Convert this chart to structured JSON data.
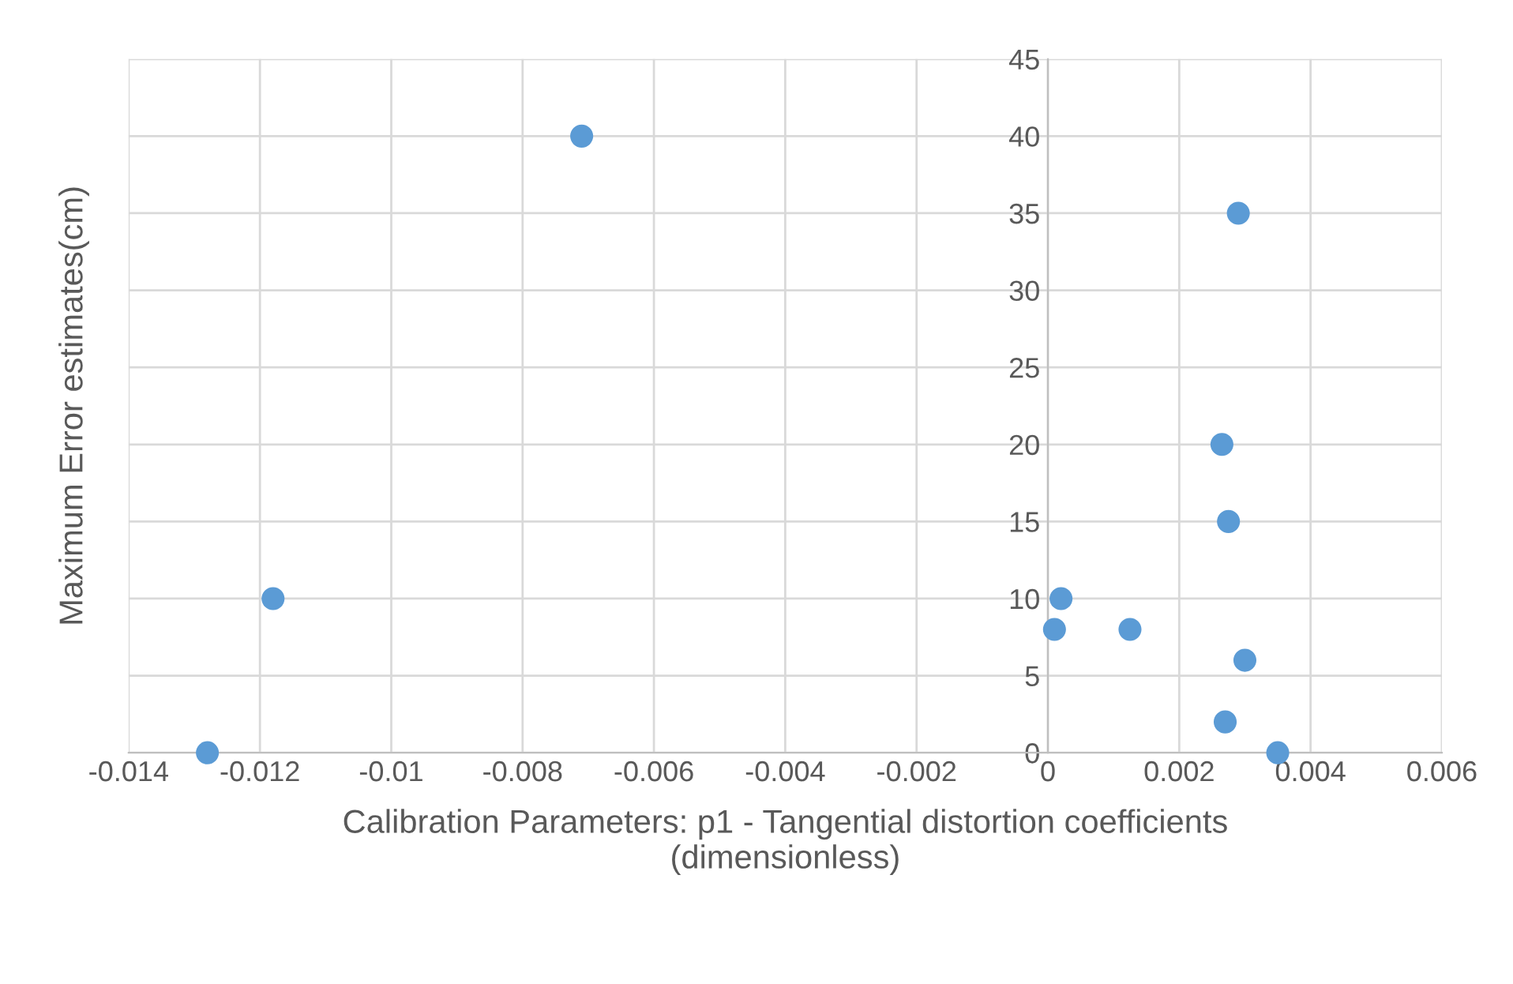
{
  "chart_data": {
    "type": "scatter",
    "xlabel": "Calibration Parameters: p1 - Tangential distortion coefficients\n(dimensionless)",
    "ylabel": "Maximum Error estimates(cm)",
    "series": [
      {
        "color": "#5b9bd5",
        "x": [
          -0.0128,
          -0.0118,
          -0.0071,
          0.0029,
          0.00265,
          0.00275,
          0.0002,
          0.0001,
          0.00125,
          0.003,
          0.0027,
          0.0035
        ],
        "values": [
          0,
          10,
          40,
          35,
          20,
          15,
          10,
          8,
          8,
          6,
          2,
          0
        ]
      }
    ],
    "xlim": [
      -0.014,
      0.006
    ],
    "xticks": [
      -0.014,
      -0.012,
      -0.01,
      -0.008,
      -0.006,
      -0.004,
      -0.002,
      0,
      0.002,
      0.004,
      0.006
    ],
    "ylim": [
      0,
      45
    ],
    "yticks": [
      0,
      5,
      10,
      15,
      20,
      25,
      30,
      35,
      40,
      45
    ],
    "grid": true,
    "marker": "circle"
  }
}
